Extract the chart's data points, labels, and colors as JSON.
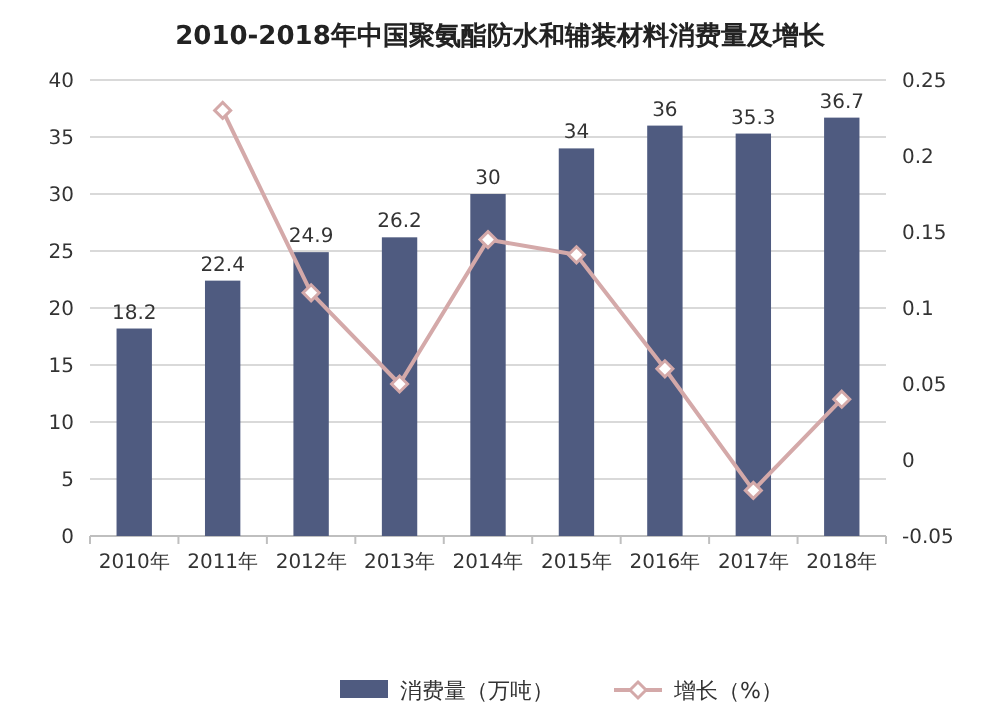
{
  "chart_data": {
    "type": "bar",
    "title": "2010-2018年中国聚氨酯防水和辅装材料消费量及增长",
    "categories": [
      "2010年",
      "2011年",
      "2012年",
      "2013年",
      "2014年",
      "2015年",
      "2016年",
      "2017年",
      "2018年"
    ],
    "series": [
      {
        "name": "消费量（万吨）",
        "color": "#4f5b80",
        "values": [
          18.2,
          22.4,
          24.9,
          26.2,
          30,
          34,
          36,
          35.3,
          36.7
        ],
        "value_labels": [
          "18.2",
          "22.4",
          "24.9",
          "26.2",
          "30",
          "34",
          "36",
          "35.3",
          "36.7"
        ]
      },
      {
        "name": "增长（%）",
        "type": "line",
        "axis": "y2",
        "color": "#d4a9a9",
        "marker": "diamond",
        "values": [
          null,
          0.23,
          0.11,
          0.05,
          0.145,
          0.135,
          0.06,
          -0.02,
          0.04
        ]
      }
    ],
    "ylim": [
      0,
      40
    ],
    "yticks": [
      0,
      5,
      10,
      15,
      20,
      25,
      30,
      35,
      40
    ],
    "y2lim": [
      -0.05,
      0.25
    ],
    "y2ticks": [
      -0.05,
      0,
      0.05,
      0.1,
      0.15,
      0.2,
      0.25
    ],
    "grid": "y",
    "legend": "bottom"
  }
}
